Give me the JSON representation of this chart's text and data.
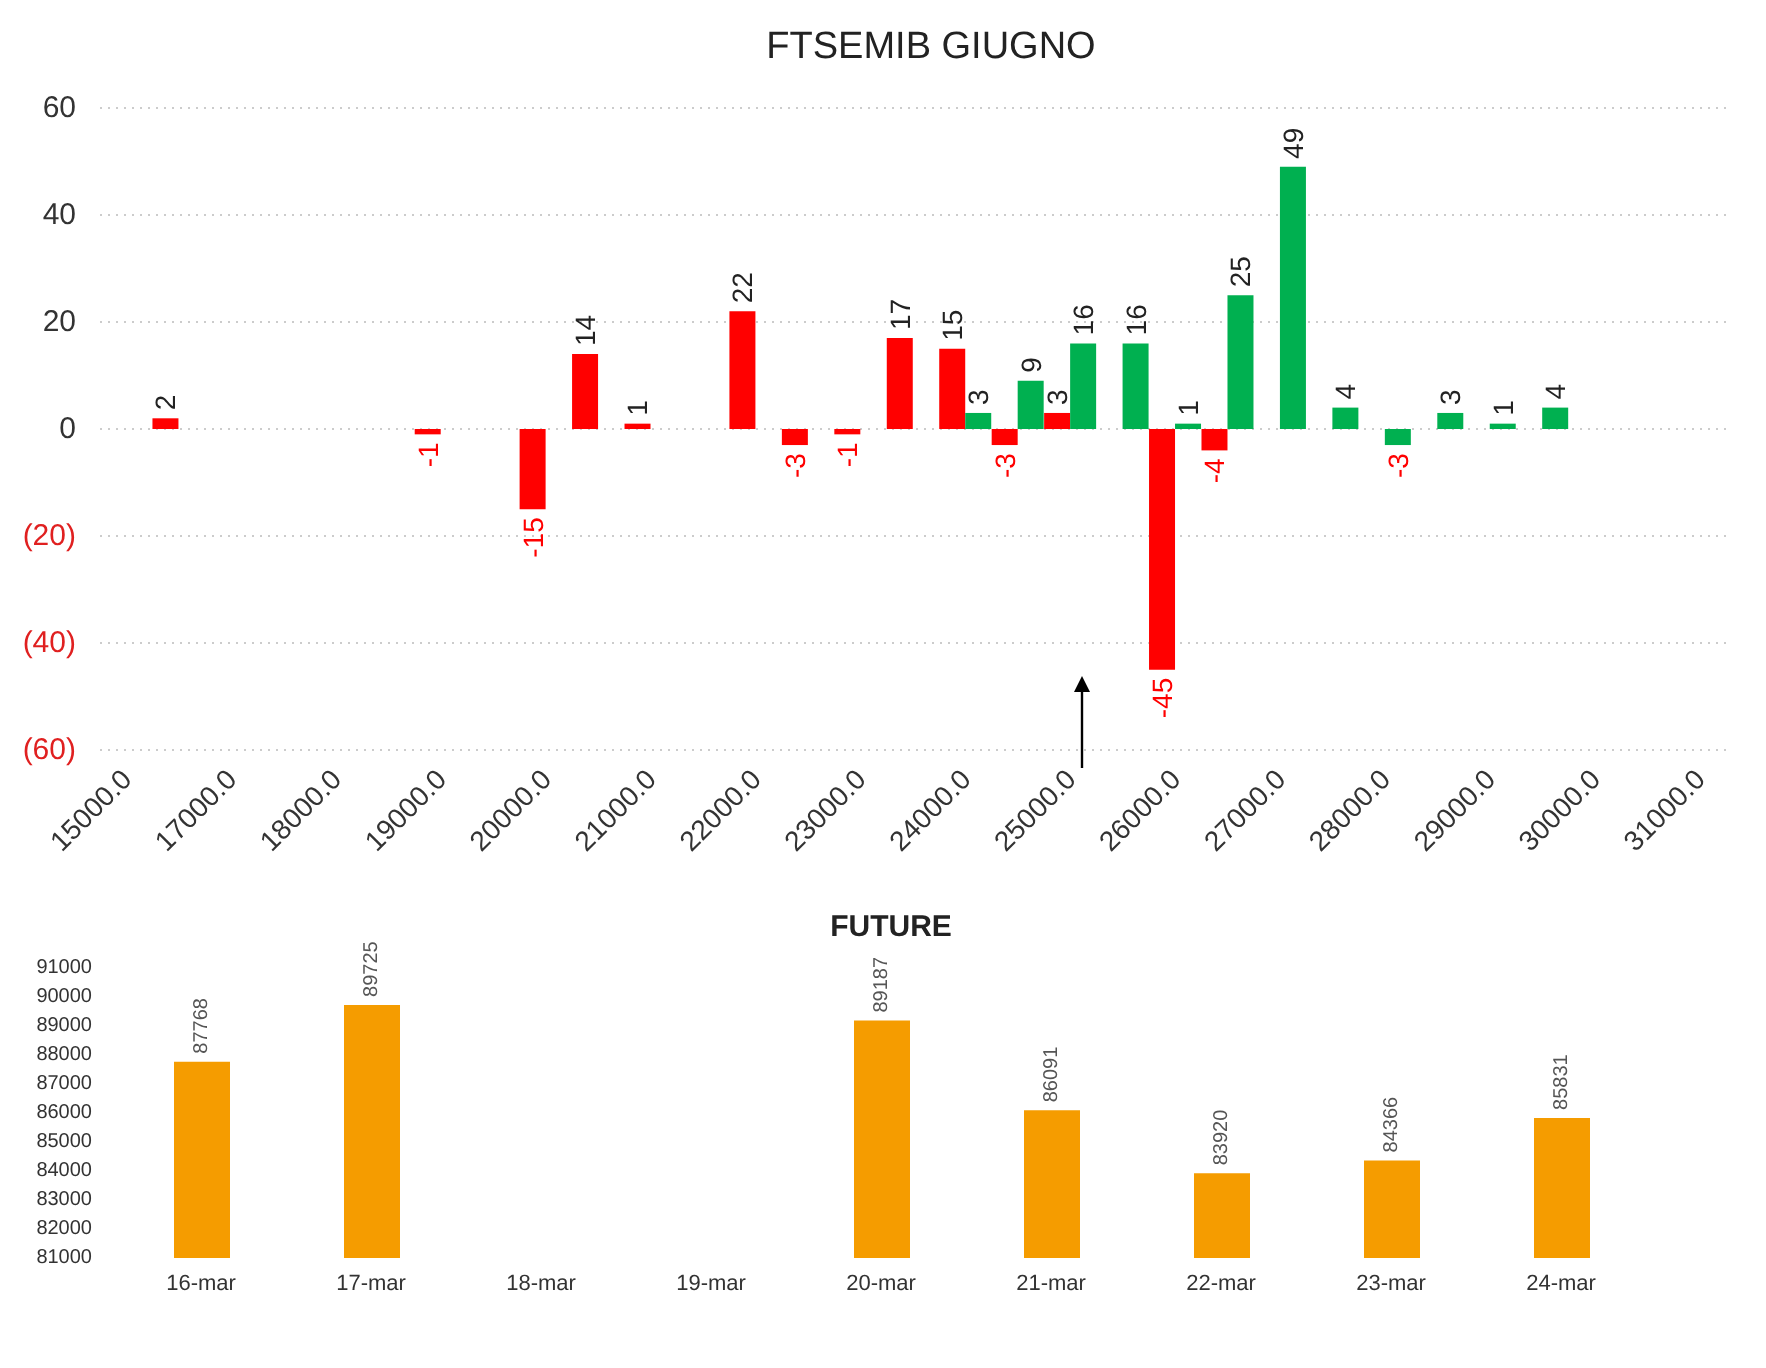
{
  "chart_data": [
    {
      "type": "bar",
      "title": "FTSEMIB GIUGNO",
      "categories": [
        "15000.0",
        null,
        "17000.0",
        null,
        "18000.0",
        null,
        "19000.0",
        null,
        "20000.0",
        null,
        "21000.0",
        null,
        "22000.0",
        null,
        "23000.0",
        null,
        "24000.0",
        null,
        "25000.0",
        null,
        "26000.0",
        null,
        "27000.0",
        null,
        "28000.0",
        null,
        "29000.0",
        null,
        "30000.0",
        null,
        "31000.0"
      ],
      "series": [
        {
          "color": "#ff0000",
          "values": [
            null,
            2,
            null,
            null,
            null,
            null,
            -1,
            null,
            -15,
            14,
            1,
            null,
            22,
            -3,
            -1,
            17,
            15,
            -3,
            3,
            null,
            -45,
            -4,
            null,
            null,
            null,
            null,
            null,
            null,
            null,
            null,
            null
          ]
        },
        {
          "color": "#00b050",
          "values": [
            null,
            null,
            null,
            null,
            null,
            null,
            null,
            null,
            null,
            null,
            null,
            null,
            null,
            null,
            null,
            null,
            3,
            9,
            16,
            16,
            1,
            25,
            49,
            4,
            -3,
            3,
            1,
            4,
            null,
            null,
            null
          ]
        }
      ],
      "ylim": [
        -60,
        60
      ],
      "yticks": [
        {
          "value": -60,
          "label": "(60)"
        },
        {
          "value": -40,
          "label": "(40)"
        },
        {
          "value": -20,
          "label": "(20)"
        },
        0,
        20,
        40,
        60
      ],
      "grid": "y",
      "data_labels": true
    },
    {
      "type": "bar",
      "title": "FUTURE",
      "categories": [
        "16-mar",
        "17-mar",
        "18-mar",
        "19-mar",
        "20-mar",
        "21-mar",
        "22-mar",
        "23-mar",
        "24-mar"
      ],
      "values": [
        87768,
        89725,
        null,
        null,
        89187,
        86091,
        83920,
        84366,
        85831
      ],
      "color": "#f59c00",
      "ylim": [
        81000,
        91000
      ],
      "yticks": [
        81000,
        82000,
        83000,
        84000,
        85000,
        86000,
        87000,
        88000,
        89000,
        90000,
        91000
      ],
      "data_labels": true
    }
  ]
}
